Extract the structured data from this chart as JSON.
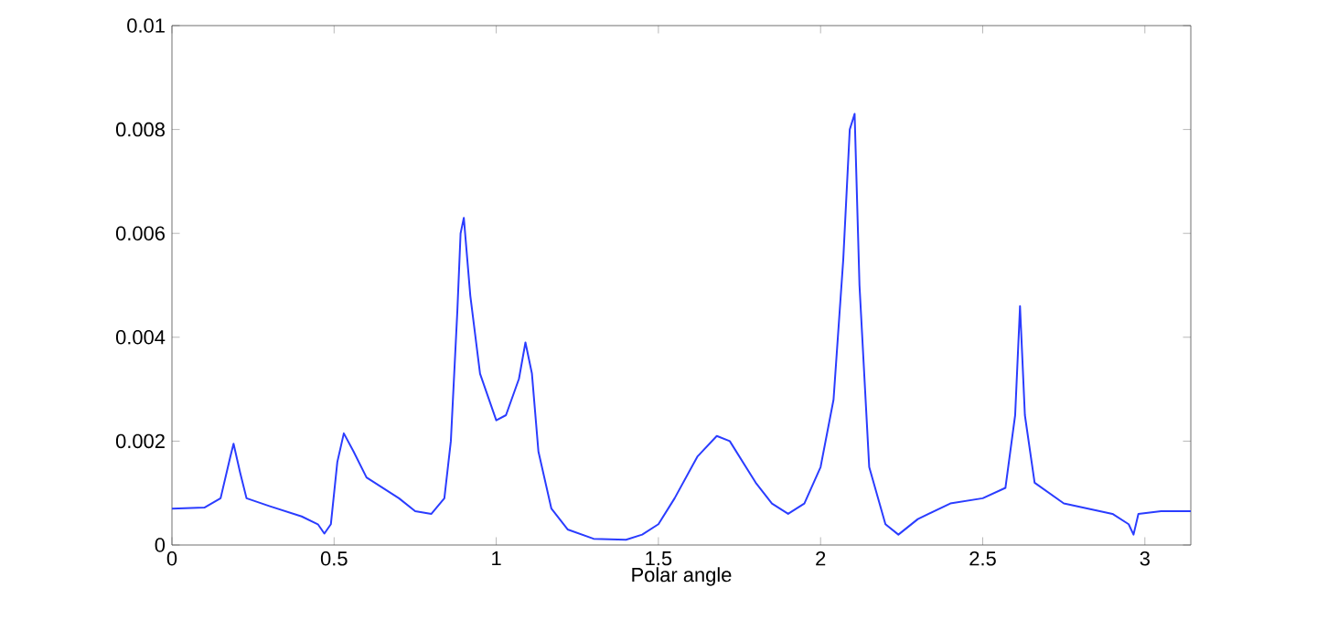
{
  "chart_data": {
    "type": "line",
    "xlabel": "Polar angle",
    "xlim": [
      0,
      3.1416
    ],
    "ylim": [
      0,
      0.01
    ],
    "xticks": [
      0,
      0.5,
      1,
      1.5,
      2,
      2.5,
      3
    ],
    "yticks": [
      0,
      0.002,
      0.004,
      0.006,
      0.008,
      0.01
    ],
    "grid": false,
    "marker": "none",
    "line_style": "solid",
    "series": [
      {
        "color": "#2a3cff",
        "x": [
          0,
          0.1,
          0.15,
          0.18,
          0.19,
          0.21,
          0.23,
          0.3,
          0.4,
          0.45,
          0.47,
          0.49,
          0.51,
          0.53,
          0.56,
          0.6,
          0.7,
          0.75,
          0.8,
          0.84,
          0.86,
          0.88,
          0.89,
          0.9,
          0.92,
          0.95,
          1.0,
          1.03,
          1.07,
          1.09,
          1.11,
          1.13,
          1.17,
          1.22,
          1.3,
          1.4,
          1.45,
          1.5,
          1.55,
          1.62,
          1.68,
          1.72,
          1.8,
          1.85,
          1.9,
          1.95,
          2.0,
          2.04,
          2.07,
          2.09,
          2.105,
          2.12,
          2.15,
          2.2,
          2.24,
          2.3,
          2.4,
          2.5,
          2.57,
          2.6,
          2.615,
          2.63,
          2.66,
          2.75,
          2.9,
          2.95,
          2.965,
          2.98,
          3.05,
          3.1416
        ],
        "values": [
          0.0007,
          0.00072,
          0.0009,
          0.0017,
          0.00195,
          0.0014,
          0.0009,
          0.00075,
          0.00055,
          0.0004,
          0.00022,
          0.0004,
          0.0016,
          0.00215,
          0.0018,
          0.0013,
          0.0009,
          0.00065,
          0.0006,
          0.0009,
          0.002,
          0.0045,
          0.006,
          0.0063,
          0.0048,
          0.0033,
          0.0024,
          0.0025,
          0.0032,
          0.0039,
          0.0033,
          0.0018,
          0.0007,
          0.0003,
          0.00012,
          0.0001,
          0.0002,
          0.0004,
          0.0009,
          0.0017,
          0.0021,
          0.002,
          0.0012,
          0.0008,
          0.0006,
          0.0008,
          0.0015,
          0.0028,
          0.0055,
          0.008,
          0.0083,
          0.005,
          0.0015,
          0.0004,
          0.0002,
          0.0005,
          0.0008,
          0.0009,
          0.0011,
          0.0025,
          0.0046,
          0.0025,
          0.0012,
          0.0008,
          0.0006,
          0.0004,
          0.0002,
          0.0006,
          0.00065,
          0.00065
        ]
      }
    ]
  }
}
